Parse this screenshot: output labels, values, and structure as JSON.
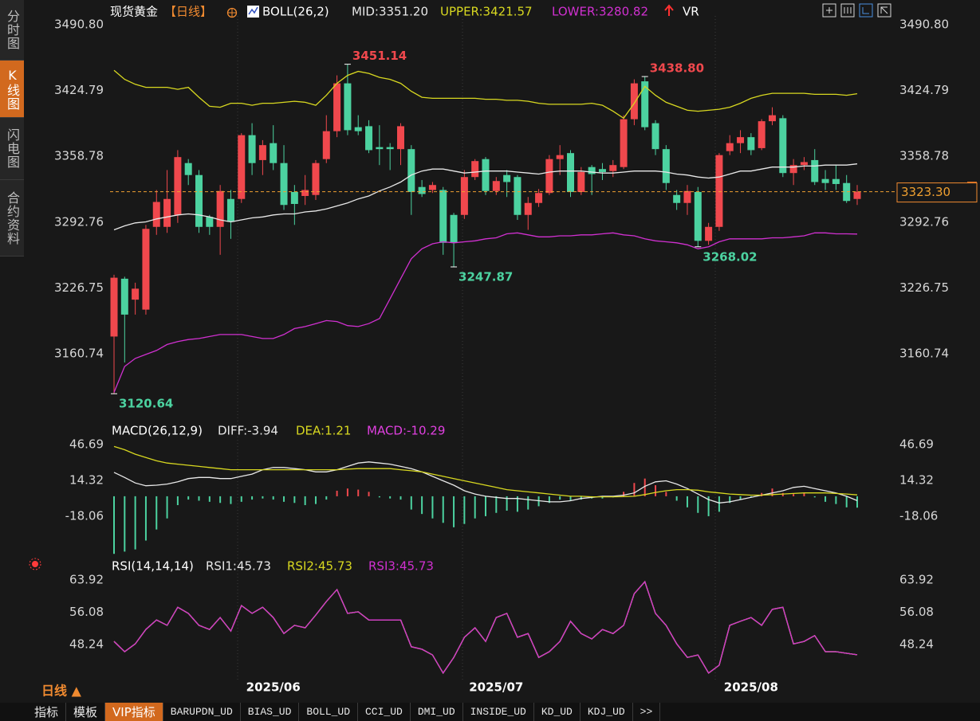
{
  "chart_data": [
    {
      "type": "candlestick",
      "title": "现货黄金",
      "period": "【日线】",
      "indicator": "BOLL(26,2)",
      "extra_indicator": "VR",
      "categories": [
        null,
        null,
        null,
        null,
        null,
        null,
        null,
        null,
        null,
        null,
        null,
        null,
        null,
        null,
        null,
        "2025/06",
        null,
        null,
        null,
        null,
        null,
        null,
        null,
        null,
        null,
        null,
        null,
        null,
        null,
        null,
        null,
        null,
        null,
        null,
        null,
        null,
        "2025/07",
        null,
        null,
        null,
        null,
        null,
        null,
        null,
        null,
        null,
        null,
        null,
        null,
        null,
        null,
        null,
        null,
        null,
        null,
        null,
        null,
        null,
        null,
        null,
        "2025/08",
        null,
        null,
        null,
        null,
        null,
        null,
        null,
        null,
        null,
        null
      ],
      "open": [
        3178,
        3236,
        3215,
        3205,
        3288,
        3288,
        3300,
        3352,
        3340,
        3298,
        3288,
        3316,
        3316,
        3380,
        3355,
        3372,
        3352,
        3323,
        3319,
        3320,
        3356,
        3384,
        3432,
        3388,
        3389,
        3368,
        3368,
        3366,
        3366,
        3328,
        3325,
        3325,
        3300,
        3300,
        3338,
        3356,
        3324,
        3340,
        3338,
        3300,
        3312,
        3322,
        3356,
        3362,
        3323,
        3348,
        3346,
        3344,
        3348,
        3396,
        3434,
        3392,
        3366,
        3320,
        3312,
        3323,
        3274,
        3288,
        3364,
        3372,
        3378,
        3367,
        3394,
        3397,
        3342,
        3350,
        3355,
        3336,
        3336,
        3332,
        3316
      ],
      "high": [
        3240,
        3238,
        3232,
        3290,
        3325,
        3345,
        3365,
        3356,
        3345,
        3300,
        3330,
        3325,
        3382,
        3392,
        3375,
        3390,
        3370,
        3330,
        3340,
        3355,
        3400,
        3440,
        3451.14,
        3400,
        3395,
        3390,
        3372,
        3392,
        3370,
        3335,
        3333,
        3328,
        3302,
        3345,
        3356,
        3358,
        3338,
        3345,
        3340,
        3318,
        3326,
        3360,
        3370,
        3365,
        3348,
        3350,
        3352,
        3355,
        3400,
        3436,
        3438.8,
        3395,
        3370,
        3325,
        3330,
        3328,
        3292,
        3362,
        3380,
        3385,
        3382,
        3396,
        3408,
        3400,
        3356,
        3358,
        3366,
        3345,
        3350,
        3340,
        3330
      ],
      "low": [
        3120.64,
        3152,
        3200,
        3200,
        3280,
        3282,
        3292,
        3330,
        3282,
        3280,
        3260,
        3276,
        3312,
        3340,
        3340,
        3345,
        3305,
        3290,
        3310,
        3315,
        3352,
        3378,
        3380,
        3380,
        3362,
        3350,
        3345,
        3350,
        3300,
        3318,
        3322,
        3260,
        3247.87,
        3296,
        3335,
        3320,
        3320,
        3318,
        3295,
        3285,
        3308,
        3320,
        3340,
        3318,
        3320,
        3320,
        3335,
        3338,
        3346,
        3390,
        3385,
        3360,
        3325,
        3305,
        3300,
        3268.02,
        3270,
        3284,
        3360,
        3362,
        3360,
        3365,
        3390,
        3338,
        3330,
        3345,
        3330,
        3325,
        3325,
        3312,
        3310
      ],
      "close": [
        3237,
        3200,
        3226,
        3286,
        3313,
        3316,
        3358,
        3340,
        3288,
        3288,
        3324,
        3293,
        3380,
        3352,
        3370,
        3352,
        3310,
        3311,
        3325,
        3352,
        3384,
        3432,
        3385,
        3384,
        3365,
        3366,
        3366,
        3389,
        3323,
        3321,
        3330,
        3272,
        3272,
        3338,
        3354,
        3324,
        3334,
        3333,
        3300,
        3312,
        3322,
        3356,
        3360,
        3323,
        3343,
        3341,
        3343,
        3350,
        3396,
        3432,
        3388,
        3366,
        3332,
        3312,
        3324,
        3274,
        3288,
        3360,
        3372,
        3378,
        3365,
        3394,
        3400,
        3342,
        3350,
        3353,
        3333,
        3332,
        3331,
        3314,
        3323.3
      ],
      "up_color": "#f0484d",
      "down_color": "#4cd2a0",
      "series": [
        {
          "name": "MID:3351.20",
          "color": "#e8e8e8",
          "values": [
            3285,
            3289,
            3292,
            3293,
            3296,
            3298,
            3300,
            3301,
            3300,
            3298,
            3295,
            3293,
            3295,
            3297,
            3298,
            3300,
            3301,
            3301,
            3303,
            3304,
            3306,
            3309,
            3312,
            3316,
            3319,
            3324,
            3328,
            3333,
            3340,
            3344,
            3346,
            3346,
            3344,
            3342,
            3343,
            3344,
            3344,
            3344,
            3343,
            3342,
            3341,
            3343,
            3344,
            3344,
            3344,
            3343,
            3342,
            3342,
            3343,
            3344,
            3344,
            3344,
            3343,
            3341,
            3340,
            3338,
            3337,
            3338,
            3341,
            3344,
            3344,
            3346,
            3348,
            3348,
            3348,
            3349,
            3349,
            3350,
            3350,
            3350,
            3351.2
          ]
        },
        {
          "name": "UPPER:3421.57",
          "color": "#d8d820",
          "values": [
            3445,
            3436,
            3431,
            3428,
            3428,
            3428,
            3426,
            3428,
            3418,
            3409,
            3408,
            3412,
            3412,
            3410,
            3412,
            3412,
            3413,
            3414,
            3413,
            3410,
            3420,
            3432,
            3440,
            3444,
            3442,
            3438,
            3436,
            3432,
            3424,
            3418,
            3417,
            3417,
            3417,
            3417,
            3417,
            3416,
            3416,
            3415,
            3415,
            3414,
            3412,
            3411,
            3411,
            3411,
            3411,
            3412,
            3410,
            3404,
            3397,
            3412,
            3429,
            3420,
            3413,
            3409,
            3405,
            3404,
            3405,
            3406,
            3408,
            3412,
            3417,
            3420,
            3422,
            3422,
            3422,
            3422,
            3421,
            3421,
            3421,
            3420,
            3421.57
          ]
        },
        {
          "name": "LOWER:3280.82",
          "color": "#d030d0",
          "values": [
            3122,
            3148,
            3156,
            3160,
            3164,
            3170,
            3173,
            3175,
            3176,
            3178,
            3180,
            3180,
            3180,
            3178,
            3176,
            3176,
            3180,
            3186,
            3188,
            3191,
            3194,
            3193,
            3189,
            3188,
            3191,
            3196,
            3216,
            3236,
            3256,
            3266,
            3271,
            3273,
            3272,
            3273,
            3274,
            3276,
            3277,
            3281,
            3282,
            3280,
            3278,
            3278,
            3279,
            3279,
            3280,
            3280,
            3281,
            3282,
            3280,
            3279,
            3276,
            3274,
            3273,
            3272,
            3270,
            3266,
            3268,
            3273,
            3276,
            3276,
            3276,
            3276,
            3277,
            3277,
            3278,
            3279,
            3282,
            3282,
            3281,
            3281,
            3280.82
          ]
        }
      ],
      "ylim": [
        3116,
        3499.6
      ],
      "yticks": [
        {
          "value": 3490.8,
          "label": "3490.80"
        },
        3424.79,
        3358.78,
        3292.76,
        3226.75,
        3160.74
      ],
      "last_price": {
        "value": 3323.3,
        "label": "3323.30"
      },
      "annotations": [
        3451.14,
        {
          "value": 3438.8,
          "label": "3438.80"
        },
        3247.87,
        3268.02,
        3120.64
      ],
      "grid": false
    },
    {
      "type": "macd",
      "title": "MACD(26,12,9)",
      "series": [
        {
          "name": "DIFF:-3.94",
          "color": "#e8e8e8",
          "values": [
            21.6,
            17,
            12,
            9.5,
            10,
            11,
            13,
            16,
            17,
            17,
            16,
            16,
            18,
            20,
            24,
            26,
            26,
            25,
            24,
            22,
            22,
            24,
            27,
            30,
            31,
            30,
            29,
            27,
            25,
            22,
            18,
            14,
            10,
            5,
            2,
            0,
            -1,
            -2,
            -2,
            -3,
            -4,
            -5,
            -5,
            -4,
            -2,
            -1,
            0,
            0,
            1,
            3,
            9,
            13,
            14,
            11,
            7,
            2,
            -3,
            -6,
            -5,
            -3,
            -1,
            1,
            3,
            5,
            8,
            9,
            7,
            5,
            3,
            0,
            -3.94
          ]
        },
        {
          "name": "DEA:1.21",
          "color": "#d8d820",
          "values": [
            45,
            42,
            38,
            35,
            32,
            30,
            29,
            28,
            27,
            26,
            25,
            24,
            24,
            24,
            24,
            24,
            24,
            24,
            24,
            24,
            24,
            24,
            24.5,
            25,
            25,
            25,
            25,
            24,
            23,
            22,
            20,
            18,
            16,
            14,
            12,
            10,
            8,
            6,
            5,
            4,
            3,
            2,
            1,
            0,
            0,
            -0.5,
            -0.5,
            -0.5,
            -0.3,
            0,
            1.5,
            3.5,
            5,
            6,
            6,
            5.5,
            4,
            3,
            2,
            1.5,
            1,
            1,
            1.5,
            2,
            2.5,
            3,
            3,
            3,
            2.5,
            2,
            1.21
          ]
        },
        {
          "name": "MACD:-10.29",
          "color": "#e040e0",
          "kind": "bar",
          "up_color": "#f0484d",
          "down_color": "#4cd2a0",
          "values": [
            -52,
            -50,
            -48,
            -40,
            -30,
            -20,
            -8,
            -3,
            -4,
            -5,
            -6,
            -7,
            -5,
            -3,
            -2,
            -3,
            -5,
            -6,
            -8,
            -7,
            -3,
            5,
            7,
            6,
            4,
            -1,
            -2,
            -3,
            -12,
            -16,
            -20,
            -24,
            -28,
            -25,
            -20,
            -18,
            -15,
            -13,
            -14,
            -12,
            -9,
            -6,
            -3,
            -4,
            -3,
            -2,
            -2,
            -1,
            4,
            12,
            16,
            10,
            4,
            -4,
            -10,
            -15,
            -18,
            -14,
            -6,
            -3,
            -1,
            3,
            7,
            3,
            2,
            3,
            -1,
            -5,
            -7,
            -10,
            -10.29
          ]
        }
      ],
      "ylim": [
        -53.3,
        53.9
      ],
      "yticks": [
        46.69,
        14.32,
        -18.06
      ],
      "grid": false
    },
    {
      "type": "line",
      "title": "RSI(14,14,14)",
      "series": [
        {
          "name": "RSI1:45.73",
          "color": "#e8e8e8",
          "values": [
            49,
            46.5,
            48.4,
            51.9,
            54.2,
            52.9,
            57.3,
            55.8,
            52.9,
            51.9,
            54.8,
            51.5,
            57.7,
            55.8,
            57.3,
            54.8,
            50.9,
            52.9,
            52.3,
            55.4,
            58.7,
            61.6,
            55.8,
            56.2,
            54.2,
            54.2,
            54.2,
            54.2,
            47.7,
            47.1,
            45.7,
            41.3,
            45.1,
            50,
            52.3,
            49,
            54.8,
            55.8,
            50,
            50.9,
            45.1,
            46.5,
            49,
            53.9,
            50.9,
            49.6,
            51.9,
            50.9,
            52.9,
            60.6,
            63.5,
            55.8,
            52.9,
            48.4,
            45.1,
            45.7,
            41.3,
            43.2,
            52.9,
            53.9,
            54.8,
            52.9,
            56.8,
            57.3,
            48.4,
            49,
            50.4,
            46.5,
            46.5,
            46.1,
            45.73
          ]
        },
        {
          "name": "RSI2:45.73",
          "color": "#d8d820",
          "values": [
            49,
            46.5,
            48.4,
            51.9,
            54.2,
            52.9,
            57.3,
            55.8,
            52.9,
            51.9,
            54.8,
            51.5,
            57.7,
            55.8,
            57.3,
            54.8,
            50.9,
            52.9,
            52.3,
            55.4,
            58.7,
            61.6,
            55.8,
            56.2,
            54.2,
            54.2,
            54.2,
            54.2,
            47.7,
            47.1,
            45.7,
            41.3,
            45.1,
            50,
            52.3,
            49,
            54.8,
            55.8,
            50,
            50.9,
            45.1,
            46.5,
            49,
            53.9,
            50.9,
            49.6,
            51.9,
            50.9,
            52.9,
            60.6,
            63.5,
            55.8,
            52.9,
            48.4,
            45.1,
            45.7,
            41.3,
            43.2,
            52.9,
            53.9,
            54.8,
            52.9,
            56.8,
            57.3,
            48.4,
            49,
            50.4,
            46.5,
            46.5,
            46.1,
            45.73
          ]
        },
        {
          "name": "RSI3:45.73",
          "color": "#d030d0",
          "values": [
            49,
            46.5,
            48.4,
            51.9,
            54.2,
            52.9,
            57.3,
            55.8,
            52.9,
            51.9,
            54.8,
            51.5,
            57.7,
            55.8,
            57.3,
            54.8,
            50.9,
            52.9,
            52.3,
            55.4,
            58.7,
            61.6,
            55.8,
            56.2,
            54.2,
            54.2,
            54.2,
            54.2,
            47.7,
            47.1,
            45.7,
            41.3,
            45.1,
            50,
            52.3,
            49,
            54.8,
            55.8,
            50,
            50.9,
            45.1,
            46.5,
            49,
            53.9,
            50.9,
            49.6,
            51.9,
            50.9,
            52.9,
            60.6,
            63.5,
            55.8,
            52.9,
            48.4,
            45.1,
            45.7,
            41.3,
            43.2,
            52.9,
            53.9,
            54.8,
            52.9,
            56.8,
            57.3,
            48.4,
            49,
            50.4,
            46.5,
            46.5,
            46.1,
            45.73
          ]
        }
      ],
      "ylim": [
        39.33,
        65.47
      ],
      "yticks": [
        63.92,
        56.08,
        48.24
      ],
      "grid": false
    }
  ],
  "sidebar": [
    "分时图",
    "K线图",
    "闪电图",
    "合约资料"
  ],
  "period_button": "日线 ▲",
  "tabs": [
    "指标",
    "模板",
    "VIP指标",
    "BARUPDN_UD",
    "BIAS_UD",
    "BOLL_UD",
    "CCI_UD",
    "DMI_UD",
    "INSIDE_UD",
    "KD_UD",
    "KDJ_UD",
    ">>"
  ]
}
